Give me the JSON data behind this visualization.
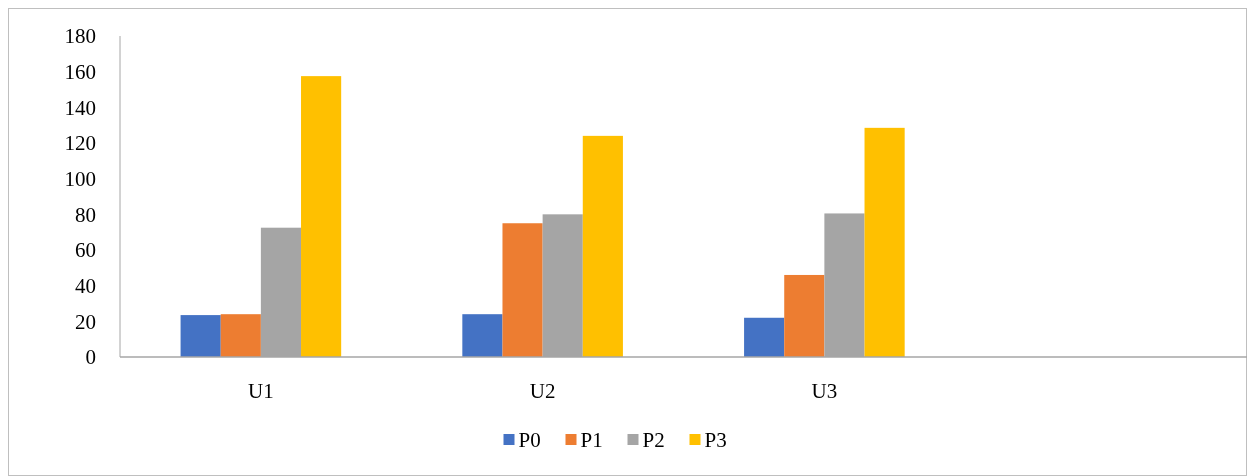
{
  "chart_data": {
    "type": "bar",
    "categories": [
      "U1",
      "U2",
      "U3",
      null
    ],
    "series": [
      {
        "name": "P0",
        "color": "#4472c4",
        "values": [
          23.5,
          24,
          22,
          null
        ]
      },
      {
        "name": "P1",
        "color": "#ed7d31",
        "values": [
          24,
          75,
          46,
          null
        ]
      },
      {
        "name": "P2",
        "color": "#a5a5a5",
        "values": [
          72.5,
          80,
          80.5,
          null
        ]
      },
      {
        "name": "P3",
        "color": "#ffc000",
        "values": [
          157.5,
          124,
          128.5,
          null
        ]
      }
    ],
    "ylim": [
      0,
      180
    ],
    "yticks": [
      0,
      20,
      40,
      60,
      80,
      100,
      120,
      140,
      160,
      180
    ],
    "grid": false,
    "legend": "bottom"
  }
}
